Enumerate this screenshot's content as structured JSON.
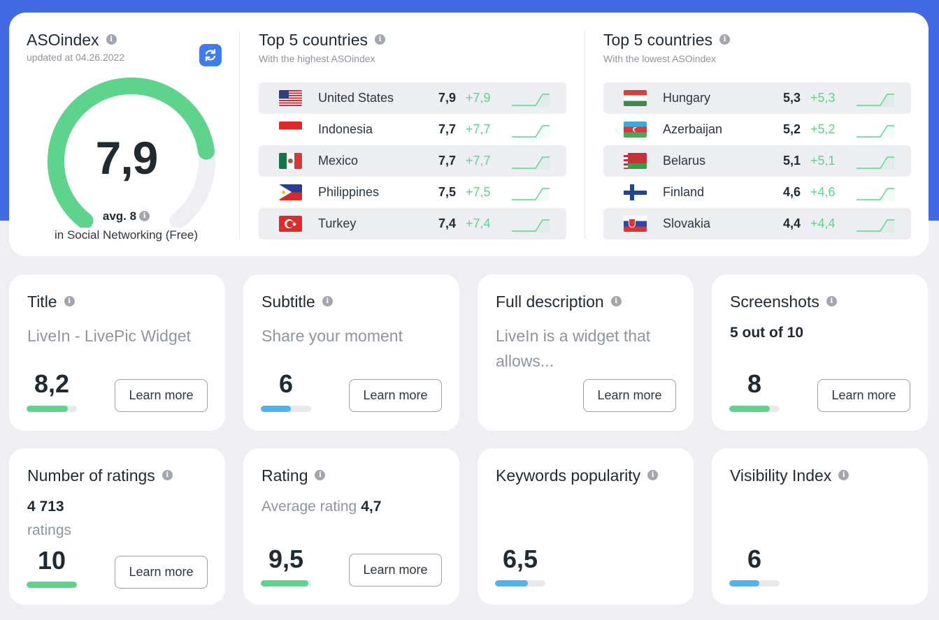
{
  "colors": {
    "accent": "#4169e1",
    "green": "#5dd38c",
    "blue": "#4db3f1",
    "gauge_track": "#eeeef3"
  },
  "aso": {
    "title": "ASOindex",
    "updated": "updated at 04.26.2022",
    "value": "7,9",
    "value_number": 7.9,
    "max": 10,
    "avg": "avg. 8",
    "category": "in Social Networking (Free)"
  },
  "top_highest": {
    "title": "Top 5 countries",
    "subtitle": "With the highest ASOindex",
    "rows": [
      {
        "name": "United States",
        "value": "7,9",
        "delta": "+7,9",
        "flag": "us-flag-icon"
      },
      {
        "name": "Indonesia",
        "value": "7,7",
        "delta": "+7,7",
        "flag": "id-flag-icon"
      },
      {
        "name": "Mexico",
        "value": "7,7",
        "delta": "+7,7",
        "flag": "mx-flag-icon"
      },
      {
        "name": "Philippines",
        "value": "7,5",
        "delta": "+7,5",
        "flag": "ph-flag-icon"
      },
      {
        "name": "Turkey",
        "value": "7,4",
        "delta": "+7,4",
        "flag": "tr-flag-icon"
      }
    ]
  },
  "top_lowest": {
    "title": "Top 5 countries",
    "subtitle": "With the lowest ASOindex",
    "rows": [
      {
        "name": "Hungary",
        "value": "5,3",
        "delta": "+5,3",
        "flag": "hu-flag-icon"
      },
      {
        "name": "Azerbaijan",
        "value": "5,2",
        "delta": "+5,2",
        "flag": "az-flag-icon"
      },
      {
        "name": "Belarus",
        "value": "5,1",
        "delta": "+5,1",
        "flag": "by-flag-icon"
      },
      {
        "name": "Finland",
        "value": "4,6",
        "delta": "+4,6",
        "flag": "fi-flag-icon"
      },
      {
        "name": "Slovakia",
        "value": "4,4",
        "delta": "+4,4",
        "flag": "sk-flag-icon"
      }
    ]
  },
  "cards": {
    "learn_more": "Learn more",
    "title": {
      "label": "Title",
      "text": "LiveIn - LivePic Widget",
      "score": "8,2",
      "fill": 0.82
    },
    "subtitle": {
      "label": "Subtitle",
      "text": "Share your moment",
      "score": "6",
      "fill": 0.6
    },
    "full_description": {
      "label": "Full description",
      "text": "LiveIn is a widget that allows...",
      "score": ""
    },
    "screenshots": {
      "label": "Screenshots",
      "strong": "5 out of 10",
      "score": "8",
      "fill": 0.8
    },
    "ratings_count": {
      "label": "Number of ratings",
      "strong": "4 713",
      "sub": "ratings",
      "score": "10",
      "fill": 1.0
    },
    "rating": {
      "label": "Rating",
      "prefix": "Average rating",
      "value": "4,7",
      "score": "9,5",
      "fill": 0.95
    },
    "keywords": {
      "label": "Keywords popularity",
      "score": "6,5",
      "fill": 0.65
    },
    "visibility": {
      "label": "Visibility Index",
      "score": "6",
      "fill": 0.6
    }
  }
}
